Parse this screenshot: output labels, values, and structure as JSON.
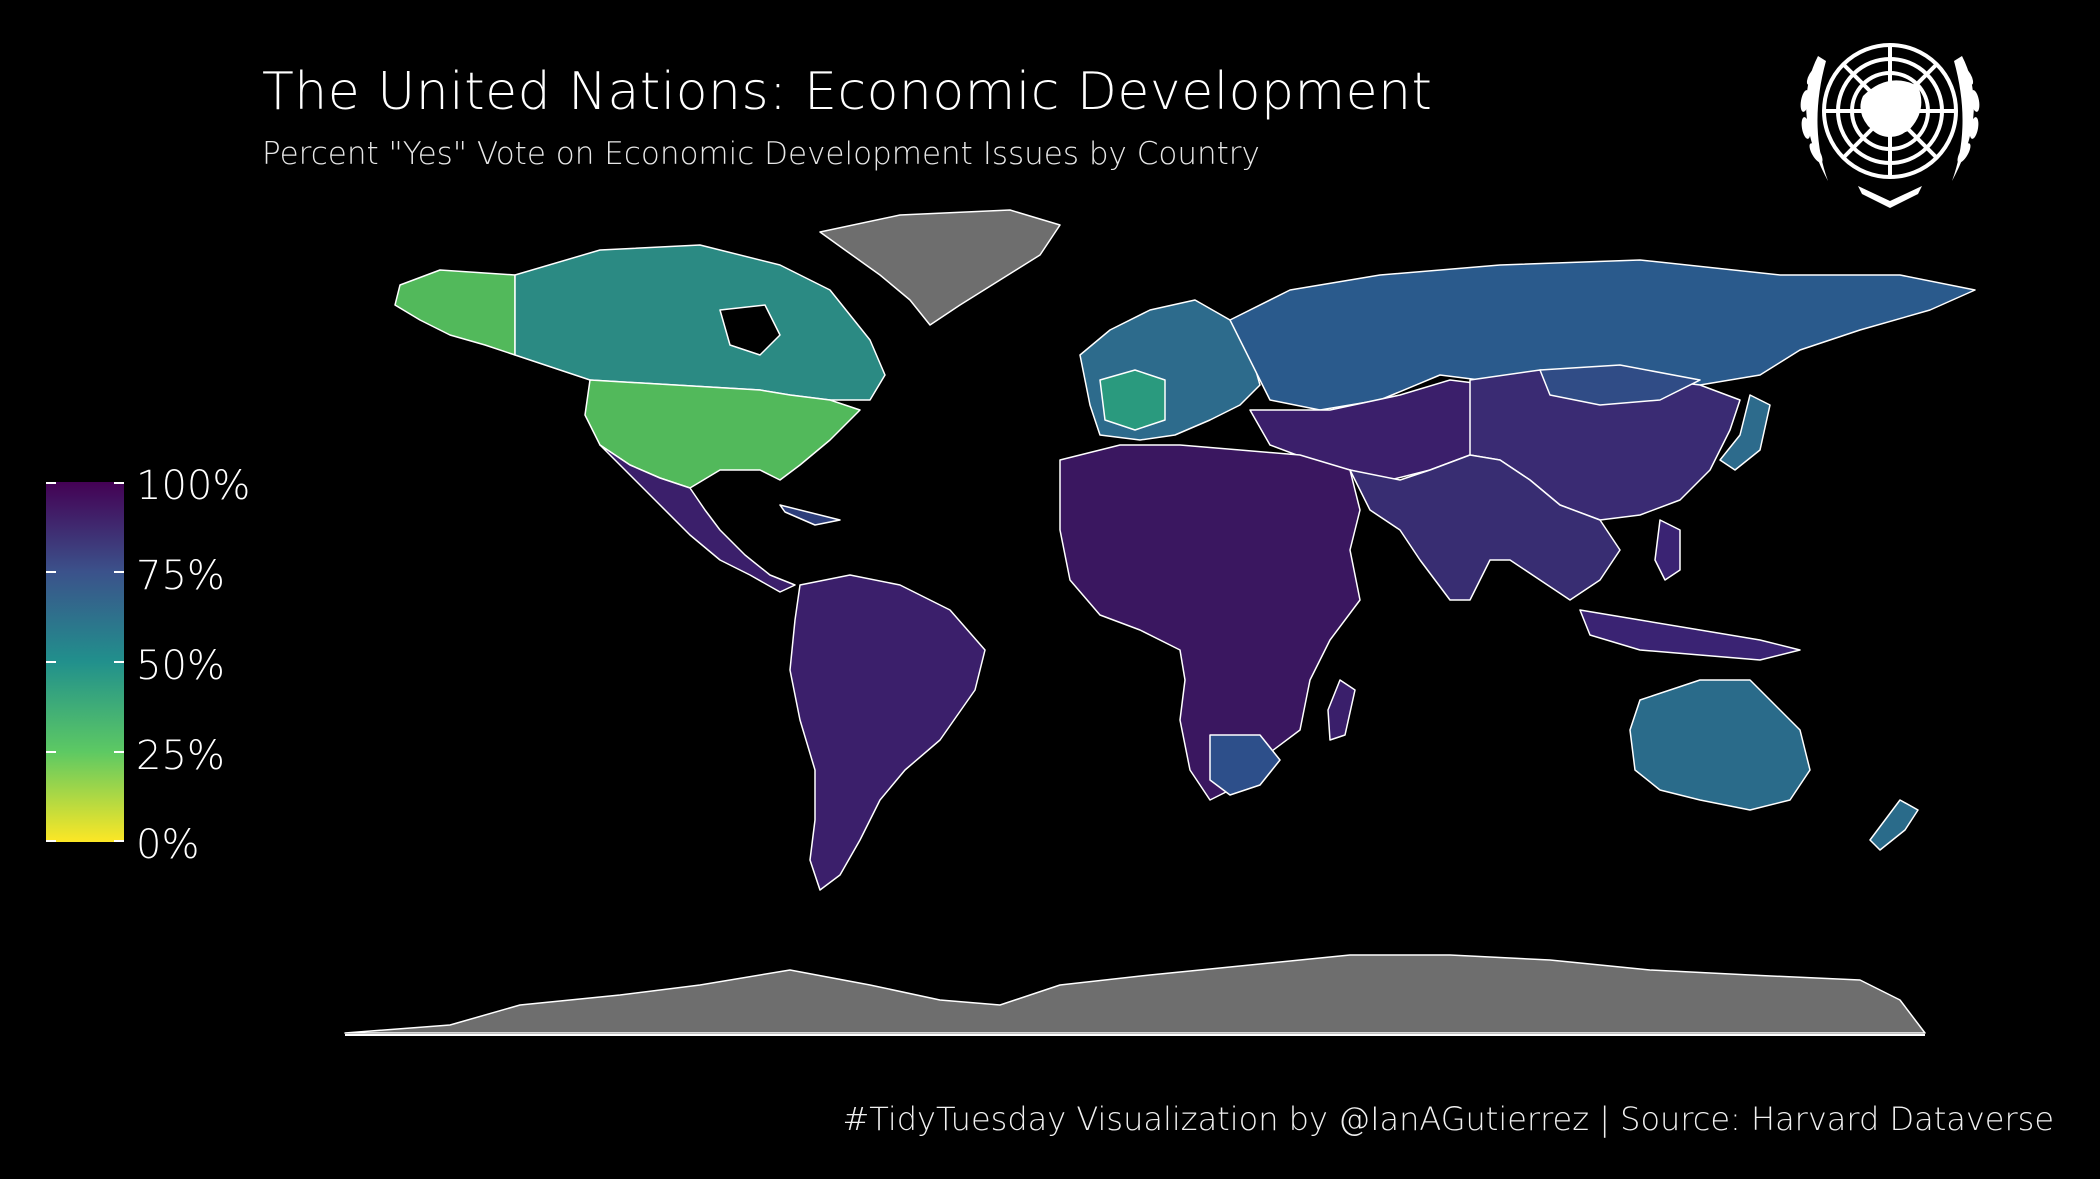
{
  "title": "The United Nations: Economic Development",
  "subtitle": "Percent \"Yes\" Vote on Economic Development Issues by Country",
  "caption": "#TidyTuesday Visualization by @IanAGutierrez | Source: Harvard Dataverse",
  "legend": {
    "labels": [
      "100%",
      "75%",
      "50%",
      "25%",
      "0%"
    ],
    "scale": "viridis (reversed)",
    "colors": [
      "#440154",
      "#3b528b",
      "#21908c",
      "#5dc963",
      "#fde725"
    ]
  },
  "colors": {
    "background": "#000000",
    "no_data": "#6e6e6e",
    "border": "#ffffff"
  },
  "regions": [
    {
      "name": "United States",
      "pct_yes": 25
    },
    {
      "name": "Alaska",
      "pct_yes": 28
    },
    {
      "name": "Canada",
      "pct_yes": 45
    },
    {
      "name": "Greenland",
      "pct_yes": null
    },
    {
      "name": "Mexico & Central America",
      "pct_yes": 92
    },
    {
      "name": "South America",
      "pct_yes": 92
    },
    {
      "name": "Western Europe",
      "pct_yes": 55
    },
    {
      "name": "France",
      "pct_yes": 40
    },
    {
      "name": "Russia",
      "pct_yes": 62
    },
    {
      "name": "China & Asia",
      "pct_yes": 88
    },
    {
      "name": "Africa",
      "pct_yes": 95
    },
    {
      "name": "Southern Africa",
      "pct_yes": 78
    },
    {
      "name": "Australia",
      "pct_yes": 55
    },
    {
      "name": "New Zealand",
      "pct_yes": 60
    },
    {
      "name": "Antarctica",
      "pct_yes": null
    }
  ]
}
